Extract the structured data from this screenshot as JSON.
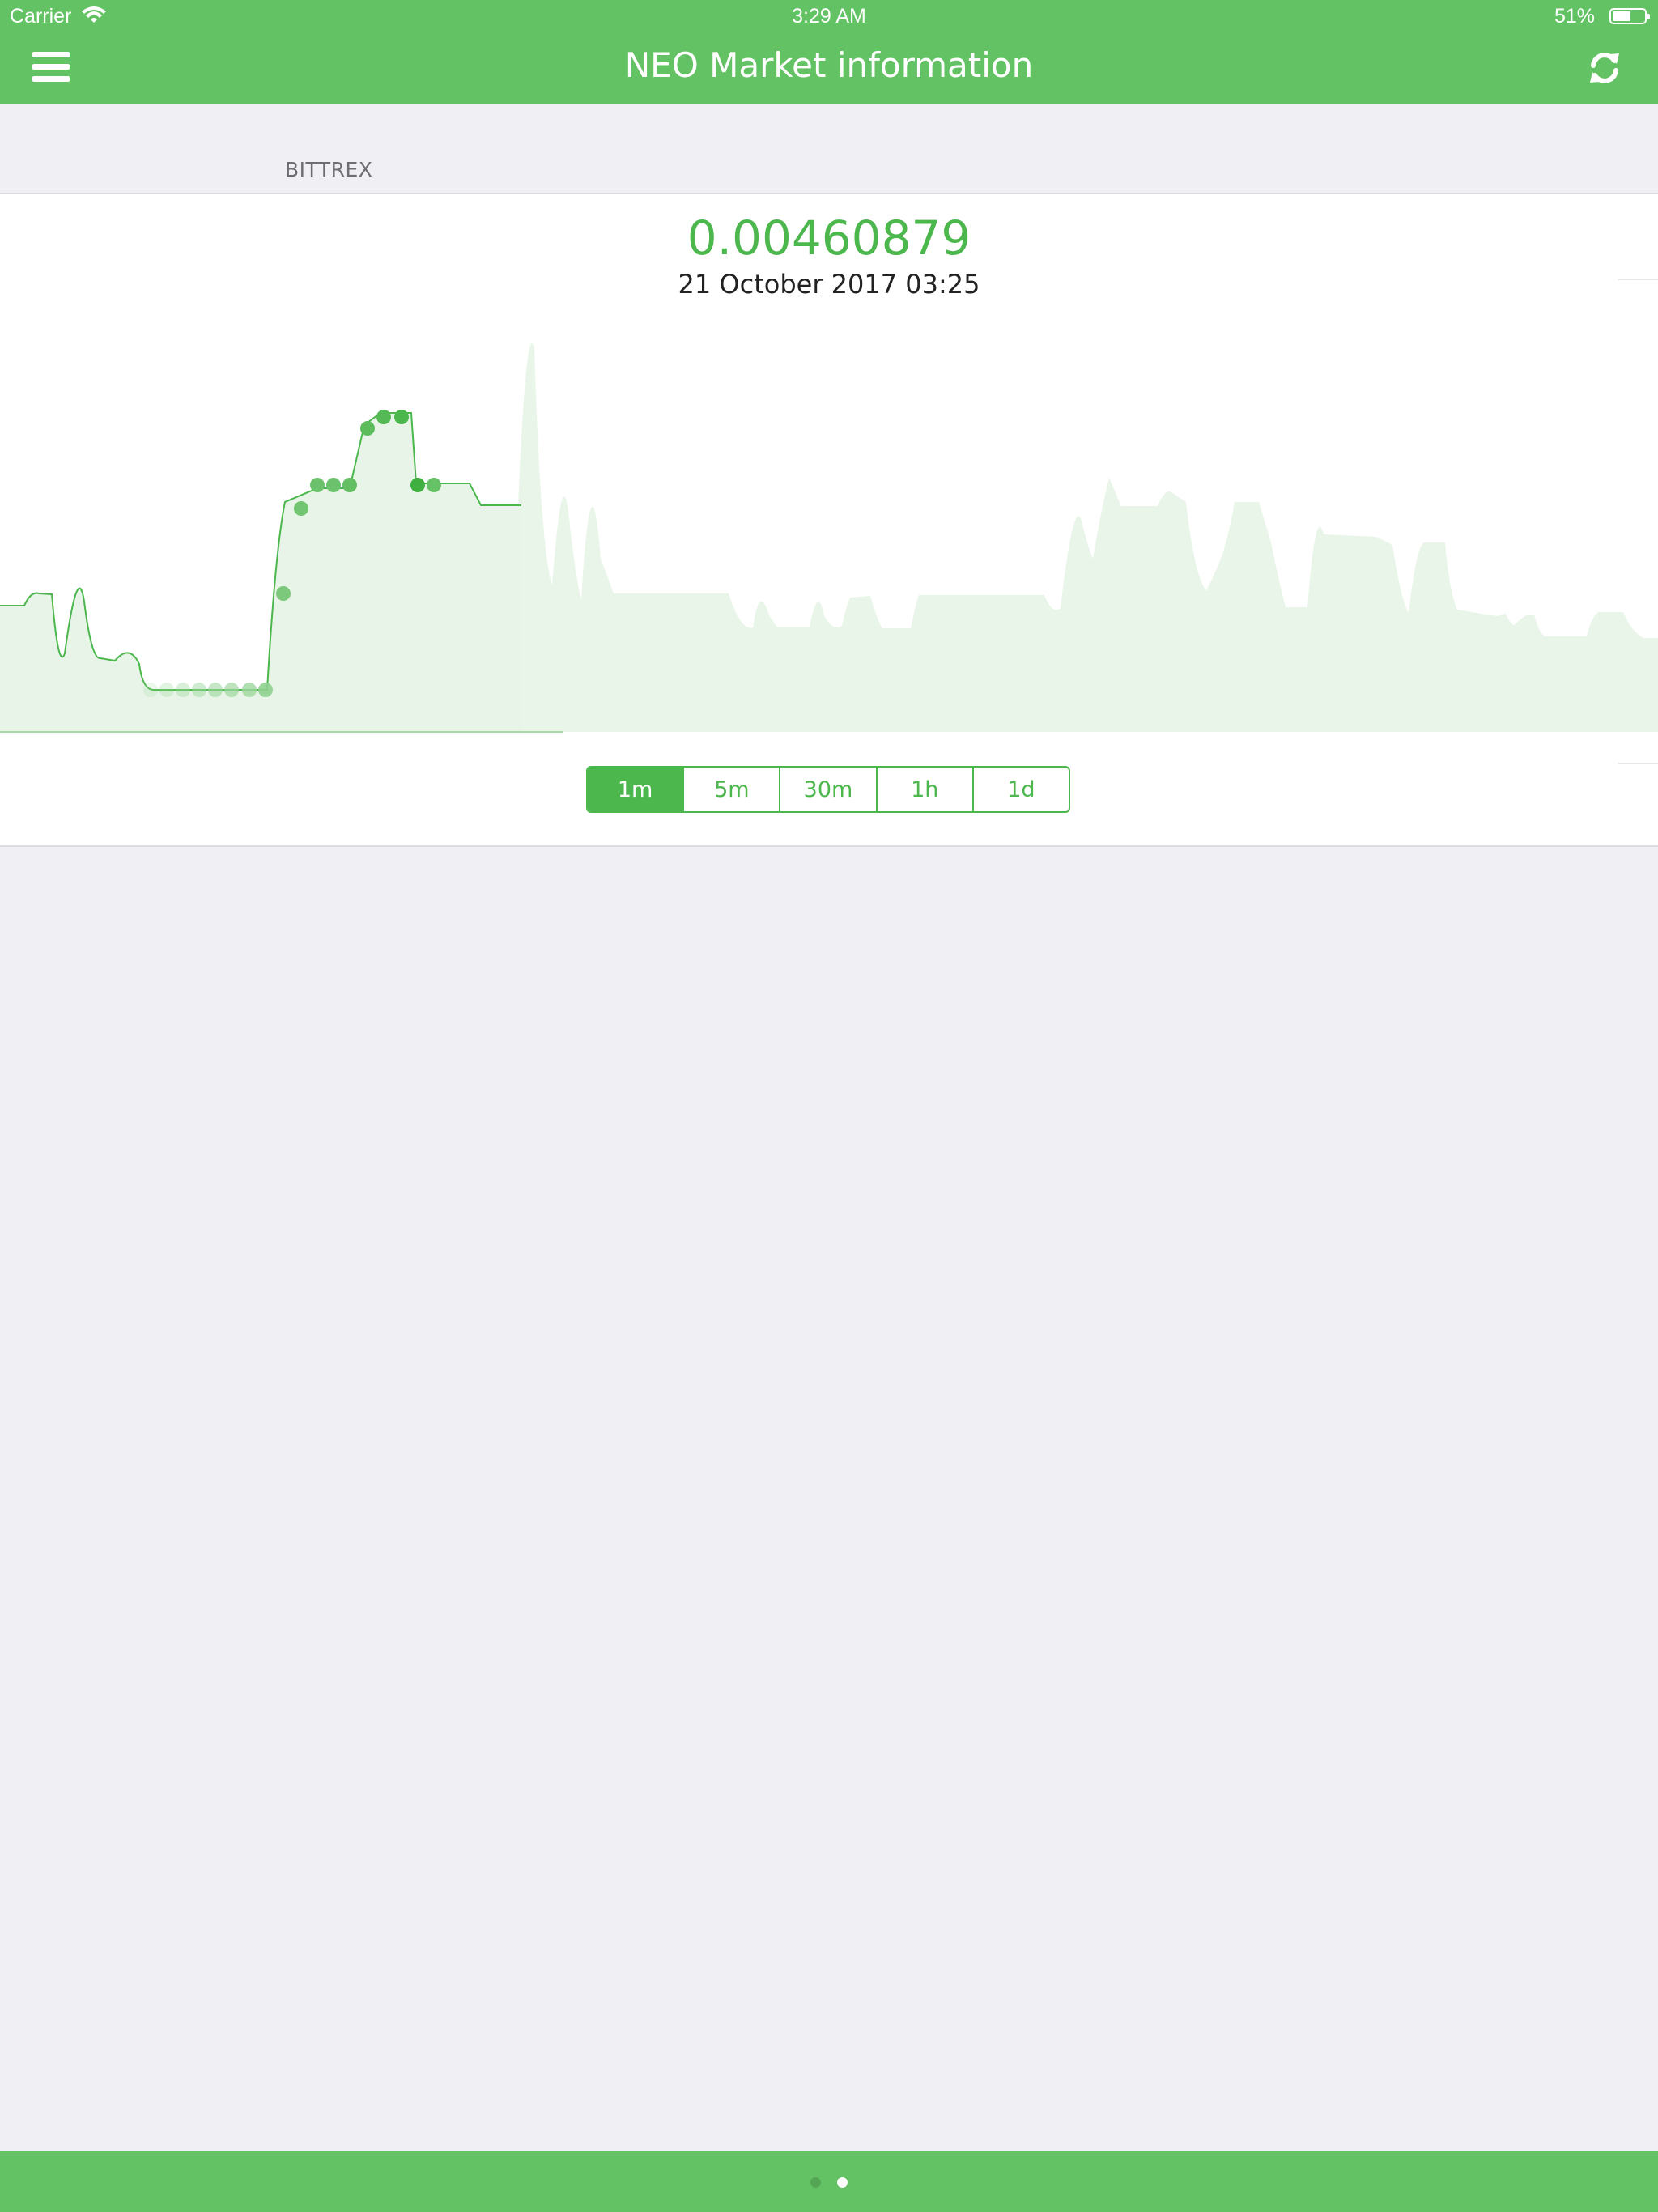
{
  "status_bar": {
    "carrier": "Carrier",
    "time": "3:29 AM",
    "battery": "51%"
  },
  "navbar": {
    "title": "NEO Market information",
    "menu_icon": "menu-icon",
    "refresh_icon": "refresh-icon"
  },
  "section": {
    "header": "BITTREX"
  },
  "market": {
    "price": "0.00460879",
    "timestamp": "21 October 2017 03:25"
  },
  "timeframes": {
    "options": [
      "1m",
      "5m",
      "30m",
      "1h",
      "1d"
    ],
    "selected": "1m"
  },
  "page_control": {
    "pages": 2,
    "current": 2
  },
  "colors": {
    "accent": "#63c263",
    "price_green": "#4cb74c",
    "background": "#efeff4"
  }
}
